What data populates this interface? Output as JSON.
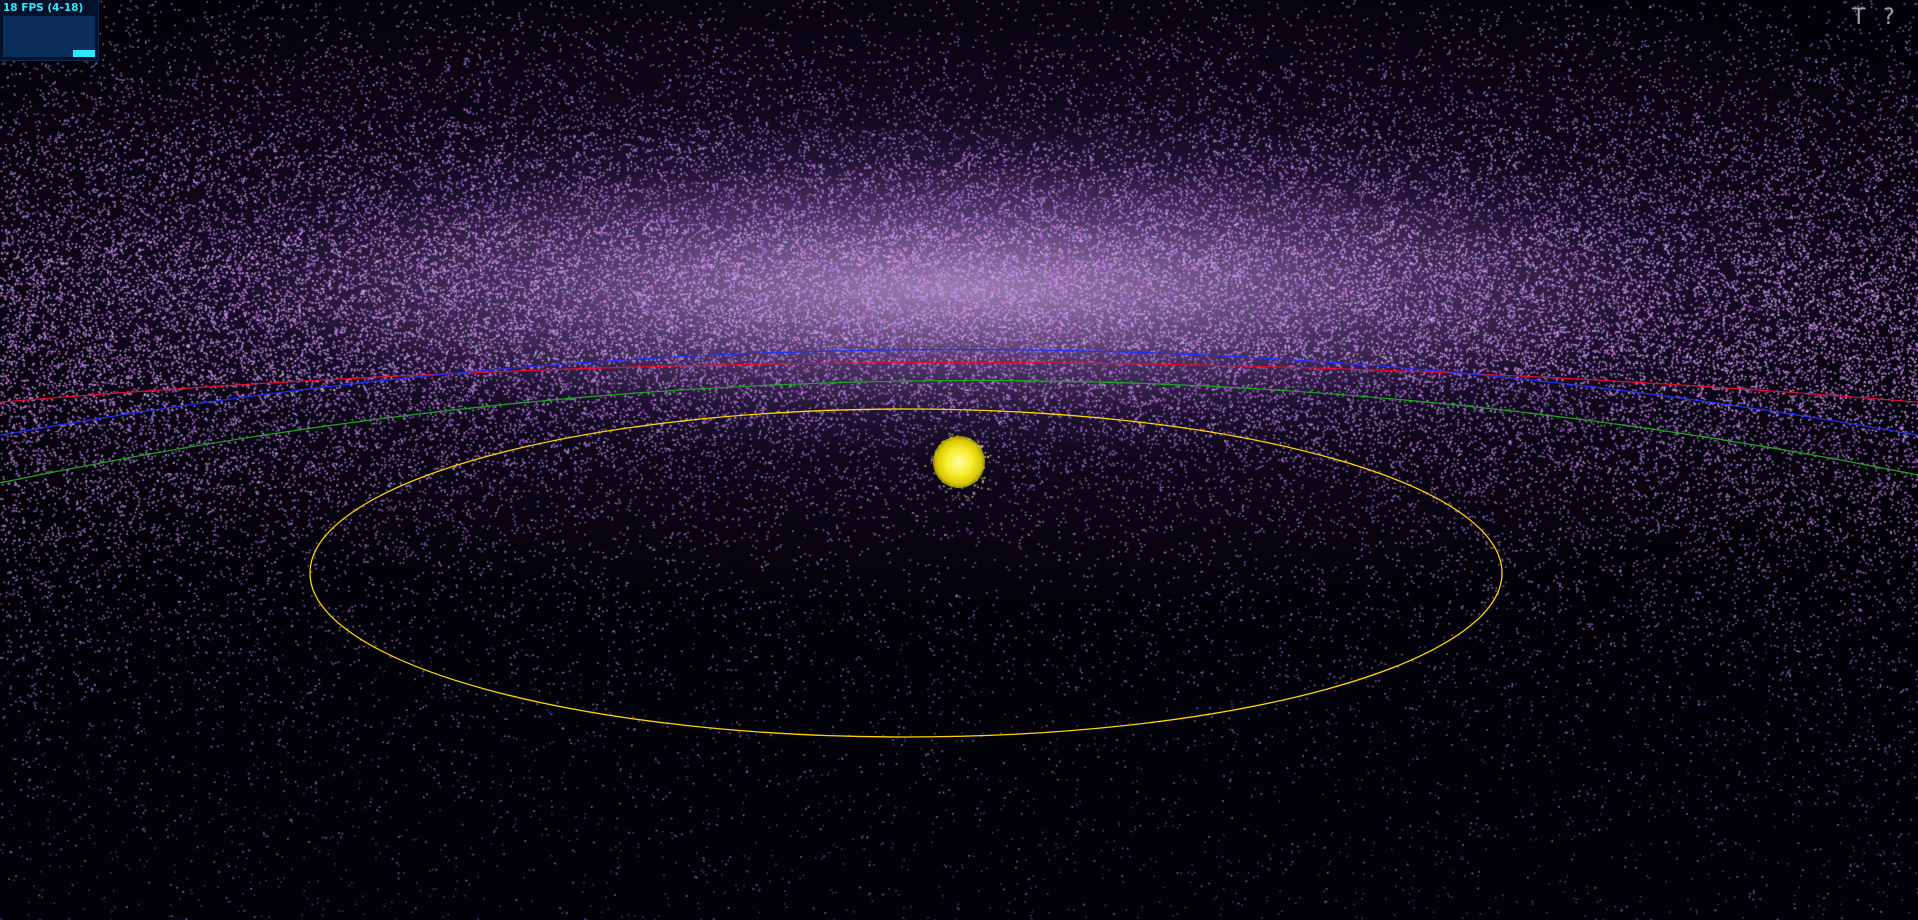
{
  "stats": {
    "fps_label": "18 FPS (4-18)",
    "fps_fraction": 1.0
  },
  "controls": {
    "toggle_text_label": "T",
    "help_label": "?"
  },
  "scene": {
    "particle_color": "#c88cf0",
    "sun_color": "#f8ee30",
    "orbits": [
      {
        "color": "#ffd400"
      },
      {
        "color": "#1ea81e"
      },
      {
        "color": "#2030ff"
      },
      {
        "color": "#e01030"
      }
    ]
  }
}
